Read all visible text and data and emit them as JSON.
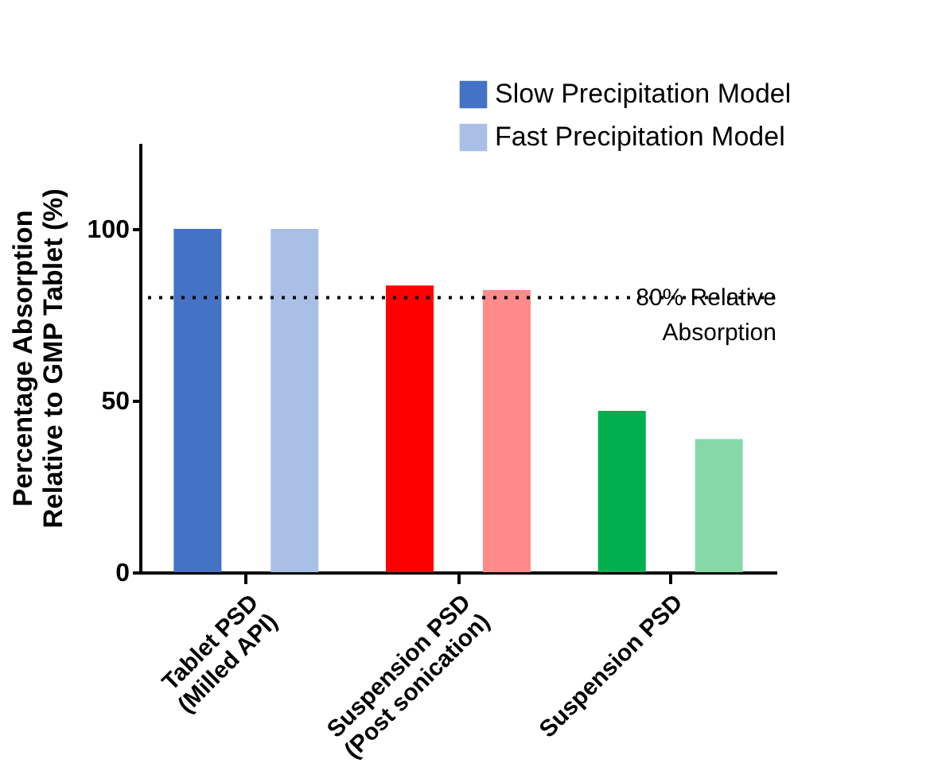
{
  "chart_data": {
    "type": "bar",
    "ylabel": "Percentage Absorption\nRelative to  GMP Tablet (%)",
    "categories": [
      "Tablet PSD\n(Milled API)",
      "Suspension PSD\n(Post sonication)",
      "Suspension PSD"
    ],
    "series": [
      {
        "name": "Slow Precipitation Model",
        "colors": [
          "#4472c4",
          "#ff0000",
          "#00b050"
        ],
        "values": [
          100,
          83.5,
          47
        ]
      },
      {
        "name": "Fast Precipitation Model",
        "colors": [
          "#a9bfe6",
          "#ff8a8a",
          "#86d9a6"
        ],
        "values": [
          100,
          82.2,
          38.8
        ]
      }
    ],
    "ylim": [
      0,
      125
    ],
    "yticks": [
      0,
      50,
      100
    ],
    "grid": false,
    "legend": "top right",
    "ref_lines": [
      {
        "axis": "y",
        "value": 80,
        "label": "80% Relative\nAbsorption",
        "color": "#000000",
        "line_style": "dotted"
      }
    ]
  }
}
